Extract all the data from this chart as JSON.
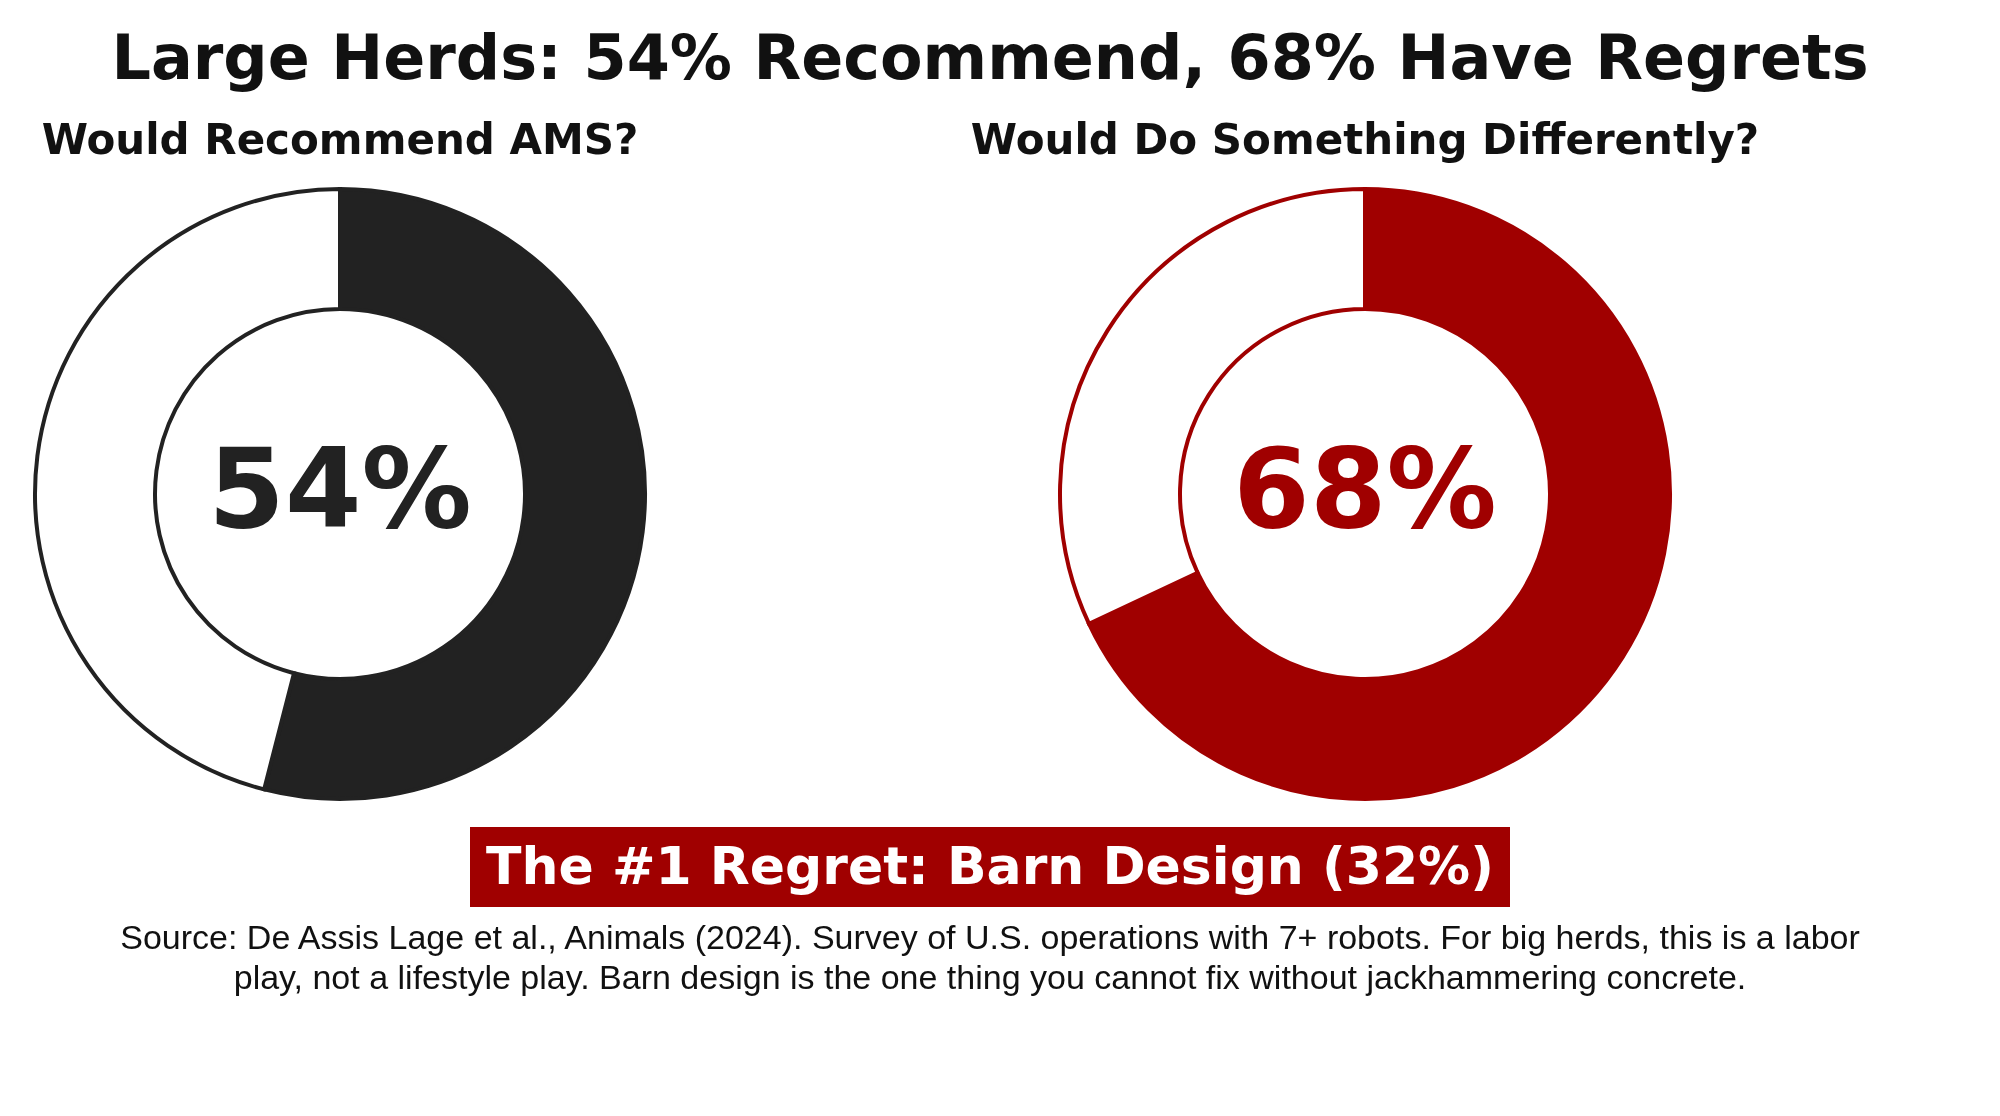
{
  "chart_data": [
    {
      "type": "other",
      "title": "Large Herds: 54% Recommend, 68% Have Regrets"
    },
    {
      "type": "donut",
      "title": "Would Recommend AMS?",
      "categories": [
        null,
        null
      ],
      "values": [
        54,
        46
      ],
      "colors": [
        "#222222",
        "#ffffff"
      ],
      "value_labels": [
        "54%",
        null
      ],
      "legend": false
    },
    {
      "type": "donut",
      "title": "Would Do Something Differently?",
      "categories": [
        null,
        null
      ],
      "values": [
        68,
        32
      ],
      "colors": [
        "#a00000",
        "#ffffff"
      ],
      "value_labels": [
        "68%",
        null
      ],
      "legend": false
    },
    {
      "type": "other",
      "annotations": [
        "The #1 Regret: Barn Design (32%)",
        "Source: De Assis Lage et al., Animals (2024). Survey of U.S. operations with 7+ robots. For big herds, this is a labor play, not a lifestyle play. Barn design is the one thing you cannot fix without jackhammering concrete."
      ]
    }
  ]
}
